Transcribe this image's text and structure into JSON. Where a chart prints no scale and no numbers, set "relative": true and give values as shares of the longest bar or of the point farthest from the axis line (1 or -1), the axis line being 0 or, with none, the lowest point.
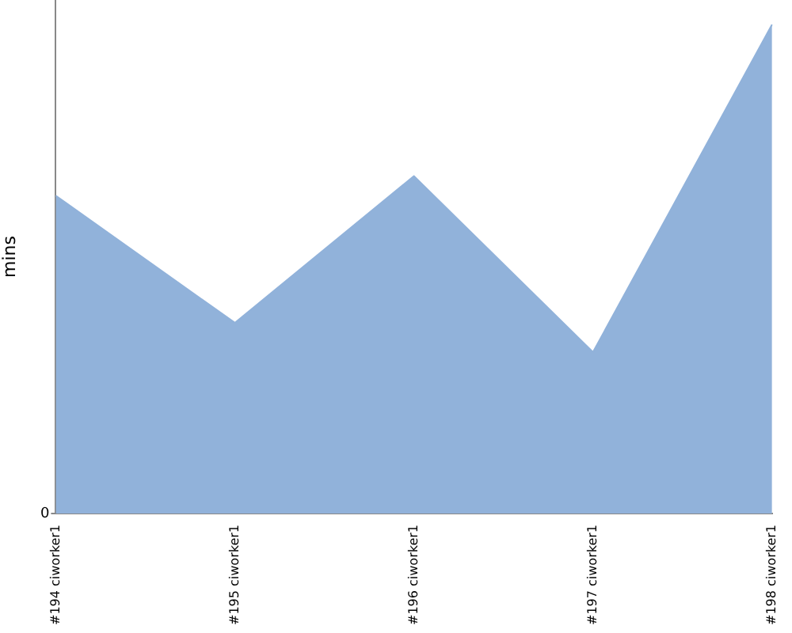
{
  "chart_data": {
    "type": "area",
    "relative": true,
    "ylabel": "mins",
    "categories": [
      "#194 ciworker1",
      "#195 ciworker1",
      "#196 ciworker1",
      "#197 ciworker1",
      "#198 ciworker1"
    ],
    "series": [
      {
        "color": "#91b2da",
        "values": [
          0.65,
          0.39,
          0.69,
          0.33,
          1
        ]
      }
    ],
    "annotations": [
      "0"
    ],
    "grid": false,
    "legend": false,
    "marker": "none"
  }
}
